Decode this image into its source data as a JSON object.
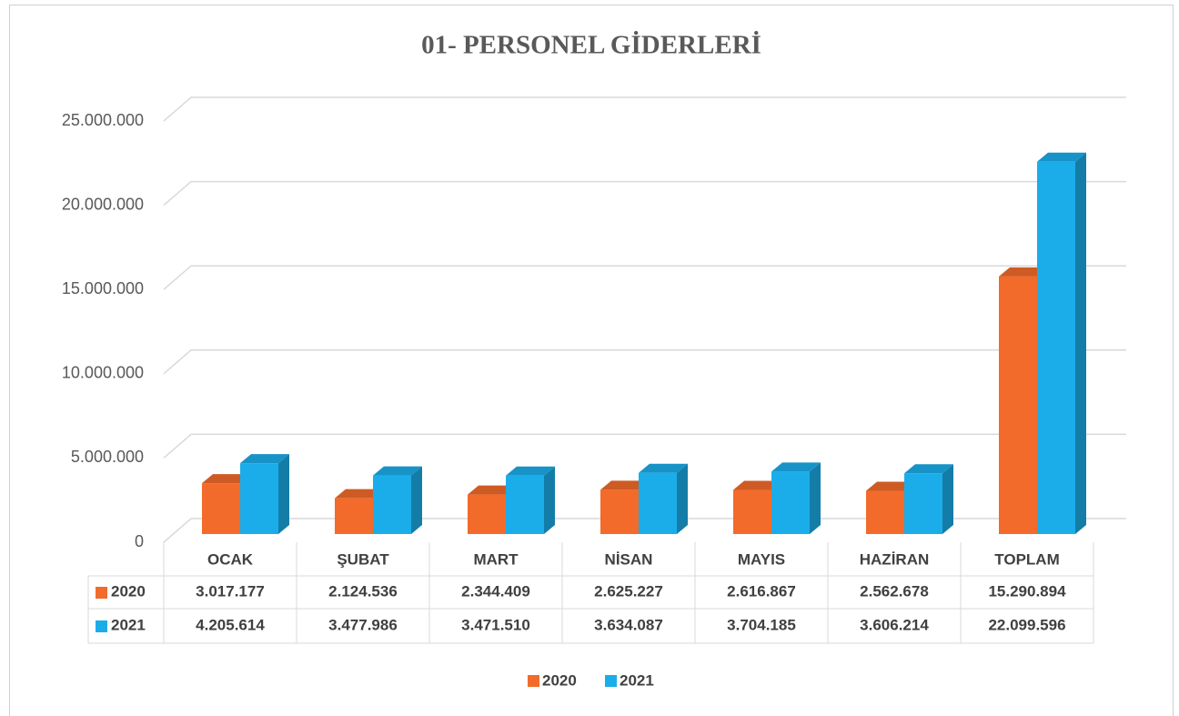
{
  "chart_data": {
    "type": "bar3d",
    "title": "01- PERSONEL GİDERLERİ",
    "categories": [
      "OCAK",
      "ŞUBAT",
      "MART",
      "NİSAN",
      "MAYIS",
      "HAZİRAN",
      "TOPLAM"
    ],
    "series": [
      {
        "name": "2020",
        "color": "#f26b2a",
        "values": [
          3017177,
          2124536,
          2344409,
          2625227,
          2616867,
          2562678,
          15290894
        ],
        "value_labels": [
          "3.017.177",
          "2.124.536",
          "2.344.409",
          "2.625.227",
          "2.616.867",
          "2.562.678",
          "15.290.894"
        ]
      },
      {
        "name": "2021",
        "color": "#1badea",
        "values": [
          4205614,
          3477986,
          3471510,
          3634087,
          3704185,
          3606214,
          22099596
        ],
        "value_labels": [
          "4.205.614",
          "3.477.986",
          "3.471.510",
          "3.634.087",
          "3.704.185",
          "3.606.214",
          "22.099.596"
        ]
      }
    ],
    "ylim": [
      0,
      25000000
    ],
    "yticks": [
      0,
      {
        "value": 5000000,
        "label": "5.000.000"
      },
      {
        "value": 10000000,
        "label": "10.000.000"
      },
      {
        "value": 15000000,
        "label": "15.000.000"
      },
      {
        "value": 20000000,
        "label": "20.000.000"
      },
      {
        "value": 25000000,
        "label": "25.000.000"
      }
    ],
    "grid": true,
    "legend": "bottom",
    "data_table": true
  }
}
